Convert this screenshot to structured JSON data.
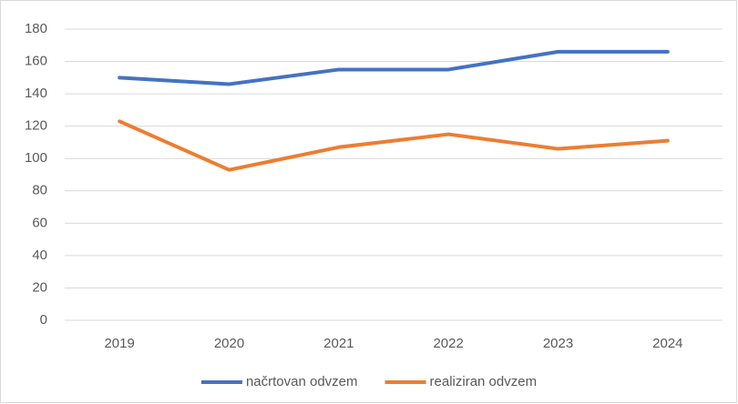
{
  "chart_data": {
    "type": "line",
    "categories": [
      "2019",
      "2020",
      "2021",
      "2022",
      "2023",
      "2024"
    ],
    "series": [
      {
        "name": "načrtovan odvzem",
        "color": "#4472c4",
        "values": [
          150,
          146,
          155,
          155,
          166,
          166
        ]
      },
      {
        "name": "realiziran odvzem",
        "color": "#ed7d31",
        "values": [
          123,
          93,
          107,
          115,
          106,
          111
        ]
      }
    ],
    "ylim": [
      0,
      180
    ],
    "yticks": [
      0,
      20,
      40,
      60,
      80,
      100,
      120,
      140,
      160,
      180
    ],
    "grid": true,
    "legend": "bottom"
  }
}
